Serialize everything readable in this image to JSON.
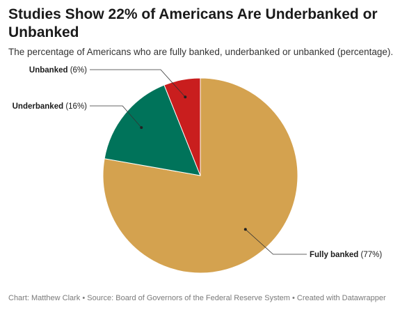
{
  "title": "Studies Show 22% of Americans Are Underbanked or Unbanked",
  "subtitle": "The percentage of Americans who are fully banked, underbanked or unbanked (percentage).",
  "footer": "Chart: Matthew Clark • Source: Board of Governors of the Federal Reserve System • Created with Datawrapper",
  "chart_data": {
    "type": "pie",
    "slices": [
      {
        "label": "Fully banked",
        "value": 77,
        "display": "(77%)",
        "color": "#d4a24f"
      },
      {
        "label": "Underbanked",
        "value": 16,
        "display": "(16%)",
        "color": "#00735a"
      },
      {
        "label": "Unbanked",
        "value": 6,
        "display": "(6%)",
        "color": "#c91e1e"
      }
    ]
  }
}
